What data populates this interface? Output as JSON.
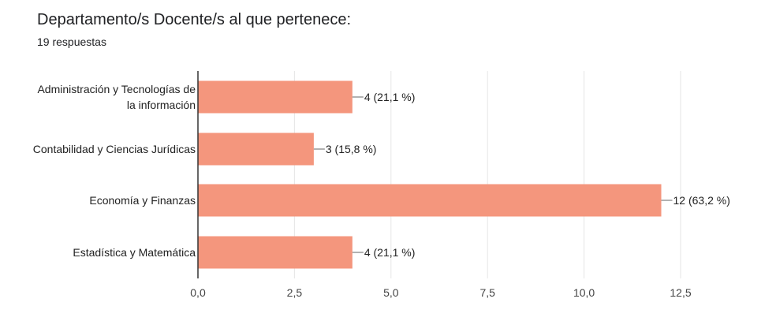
{
  "header": {
    "title": "Departamento/s Docente/s al que pertenece:",
    "response_count": "19 respuestas"
  },
  "colors": {
    "bar": "#f4967d",
    "grid": "#e6e6e6",
    "axis": "#333333"
  },
  "chart_data": {
    "type": "bar",
    "orientation": "horizontal",
    "categories": [
      [
        "Administración y Tecnologías de",
        "la información"
      ],
      [
        "Contabilidad y Ciencias Jurídicas"
      ],
      [
        "Economía y Finanzas"
      ],
      [
        "Estadística y Matemática"
      ]
    ],
    "values": [
      4,
      3,
      12,
      4
    ],
    "data_labels": [
      "4 (21,1 %)",
      "3 (15,8 %)",
      "12 (63,2 %)",
      "4 (21,1 %)"
    ],
    "xlim": [
      0,
      12.5
    ],
    "x_ticks": [
      0,
      2.5,
      5,
      7.5,
      10,
      12.5
    ],
    "x_tick_labels": [
      "0,0",
      "2,5",
      "5,0",
      "7,5",
      "10,0",
      "12,5"
    ],
    "grid": true,
    "legend": "none"
  }
}
